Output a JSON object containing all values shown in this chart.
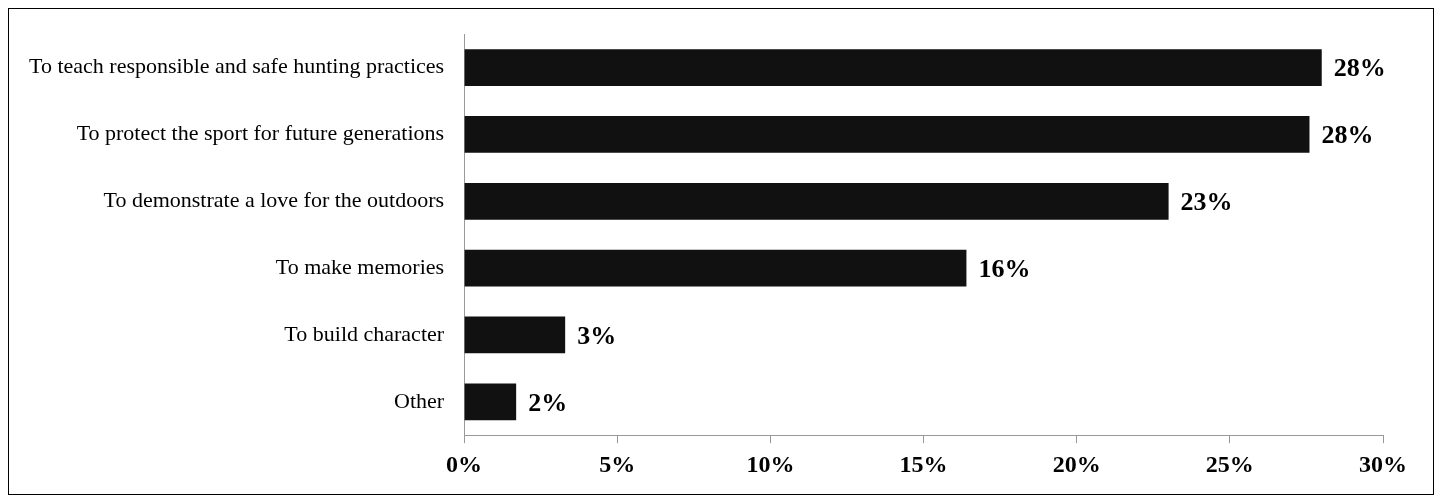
{
  "chart_data": {
    "type": "bar",
    "orientation": "horizontal",
    "categories": [
      "To teach responsible and safe hunting practices",
      "To protect the sport for future generations",
      "To demonstrate a love for the outdoors",
      "To make memories",
      "To build character",
      "Other"
    ],
    "values": [
      28.0,
      27.6,
      23.0,
      16.4,
      3.3,
      1.7
    ],
    "value_labels": [
      "28%",
      "28%",
      "23%",
      "16%",
      "3%",
      "2%"
    ],
    "color": "#111111",
    "xlim": [
      0,
      30
    ],
    "xticks": [
      {
        "value": 0,
        "label": "0%"
      },
      {
        "value": 5,
        "label": "5%"
      },
      {
        "value": 10,
        "label": "10%"
      },
      {
        "value": 15,
        "label": "15%"
      },
      {
        "value": 20,
        "label": "20%"
      },
      {
        "value": 25,
        "label": "25%"
      },
      {
        "value": 30,
        "label": "30%"
      }
    ],
    "grid": false,
    "legend": false
  }
}
